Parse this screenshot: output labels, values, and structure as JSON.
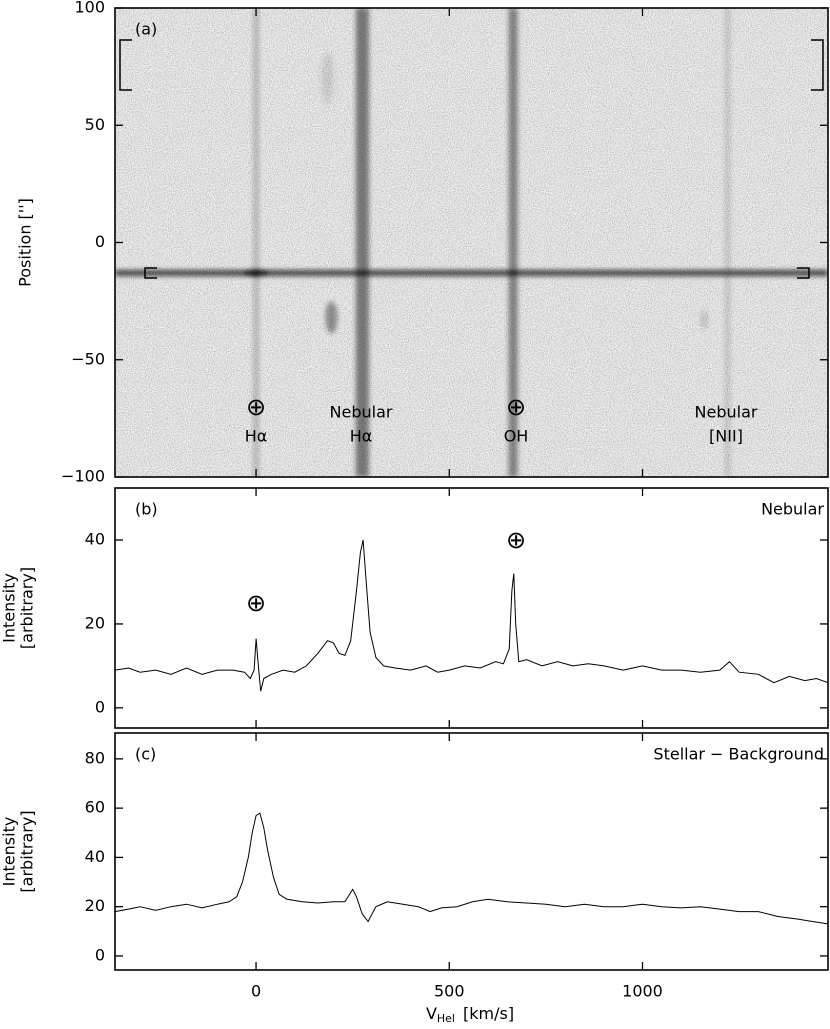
{
  "chart_data": [
    {
      "type": "image",
      "label": "(a)",
      "ylabel": "Position ['']",
      "ylim": [
        -100,
        100
      ],
      "yticks": [
        {
          "value": -100,
          "label": "−100"
        },
        {
          "value": -50,
          "label": "−50"
        },
        0,
        50,
        100
      ],
      "annotations": [
        "⊕",
        "Hα",
        "Nebular",
        "Hα",
        "⊕",
        "OH",
        "Nebular",
        "[NII]"
      ]
    },
    {
      "type": "line",
      "label": "(b)",
      "title": "Nebular",
      "ylabel": [
        "Intensity",
        "[arbitrary]"
      ],
      "ylim": [
        -4.8,
        52.4
      ],
      "yticks": [
        0,
        20,
        40
      ],
      "color": "#000000",
      "annotations": [
        "⊕",
        "⊕"
      ],
      "x": [
        -365,
        -330,
        -300,
        -260,
        -220,
        -180,
        -140,
        -100,
        -60,
        -30,
        -15,
        -5,
        0,
        5,
        12,
        20,
        40,
        70,
        100,
        130,
        160,
        185,
        200,
        215,
        230,
        245,
        260,
        270,
        277,
        285,
        295,
        310,
        330,
        360,
        400,
        440,
        470,
        500,
        540,
        580,
        620,
        640,
        655,
        662,
        667,
        672,
        680,
        700,
        740,
        780,
        820,
        860,
        900,
        950,
        1000,
        1050,
        1100,
        1150,
        1200,
        1225,
        1250,
        1300,
        1340,
        1380,
        1420,
        1450,
        1480
      ],
      "values": [
        9,
        9.5,
        8.5,
        9,
        8,
        9.5,
        8,
        9,
        9,
        8.5,
        7,
        9,
        16.5,
        11,
        4,
        7,
        8,
        9,
        8.5,
        10,
        13,
        16,
        15.5,
        13,
        12.5,
        16,
        28,
        37,
        40,
        30,
        18,
        12,
        10,
        9.5,
        9,
        10,
        8.5,
        9,
        10,
        9.5,
        11,
        10.5,
        14,
        28,
        32,
        20,
        11,
        11.5,
        10,
        11,
        10,
        10.5,
        10,
        9,
        10,
        9,
        9,
        8.5,
        9,
        11,
        8.5,
        8,
        6,
        7.5,
        6.5,
        7,
        6
      ]
    },
    {
      "type": "line",
      "label": "(c)",
      "title": "Stellar − Background",
      "ylabel": [
        "Intensity",
        "[arbitrary]"
      ],
      "ylim": [
        -5.7,
        90.5
      ],
      "yticks": [
        0,
        20,
        40,
        60,
        80
      ],
      "color": "#000000",
      "xlim": [
        -365,
        1480
      ],
      "xticks": [
        0,
        500,
        1000
      ],
      "xlabel": {
        "main": "V",
        "sub": "Hel",
        "rest": "[km/s]"
      },
      "x": [
        -365,
        -330,
        -300,
        -260,
        -220,
        -180,
        -140,
        -100,
        -70,
        -50,
        -35,
        -20,
        -10,
        0,
        10,
        20,
        30,
        45,
        60,
        80,
        120,
        160,
        200,
        230,
        250,
        260,
        275,
        290,
        310,
        340,
        380,
        420,
        450,
        480,
        520,
        560,
        600,
        650,
        700,
        750,
        800,
        850,
        900,
        950,
        1000,
        1050,
        1100,
        1150,
        1200,
        1250,
        1300,
        1350,
        1400,
        1440,
        1480
      ],
      "values": [
        18,
        19,
        20,
        18.5,
        20,
        21,
        19.5,
        21,
        22,
        24,
        30,
        40,
        50,
        57,
        58,
        52,
        43,
        32,
        25,
        23,
        22,
        21.5,
        22,
        22,
        27,
        24,
        17,
        14,
        20,
        22,
        21,
        20,
        18,
        19.5,
        20,
        22,
        23,
        22,
        21.5,
        21,
        20,
        21,
        20,
        20,
        21,
        20,
        19.5,
        20,
        19,
        18,
        18,
        16,
        15,
        14,
        13
      ]
    }
  ]
}
